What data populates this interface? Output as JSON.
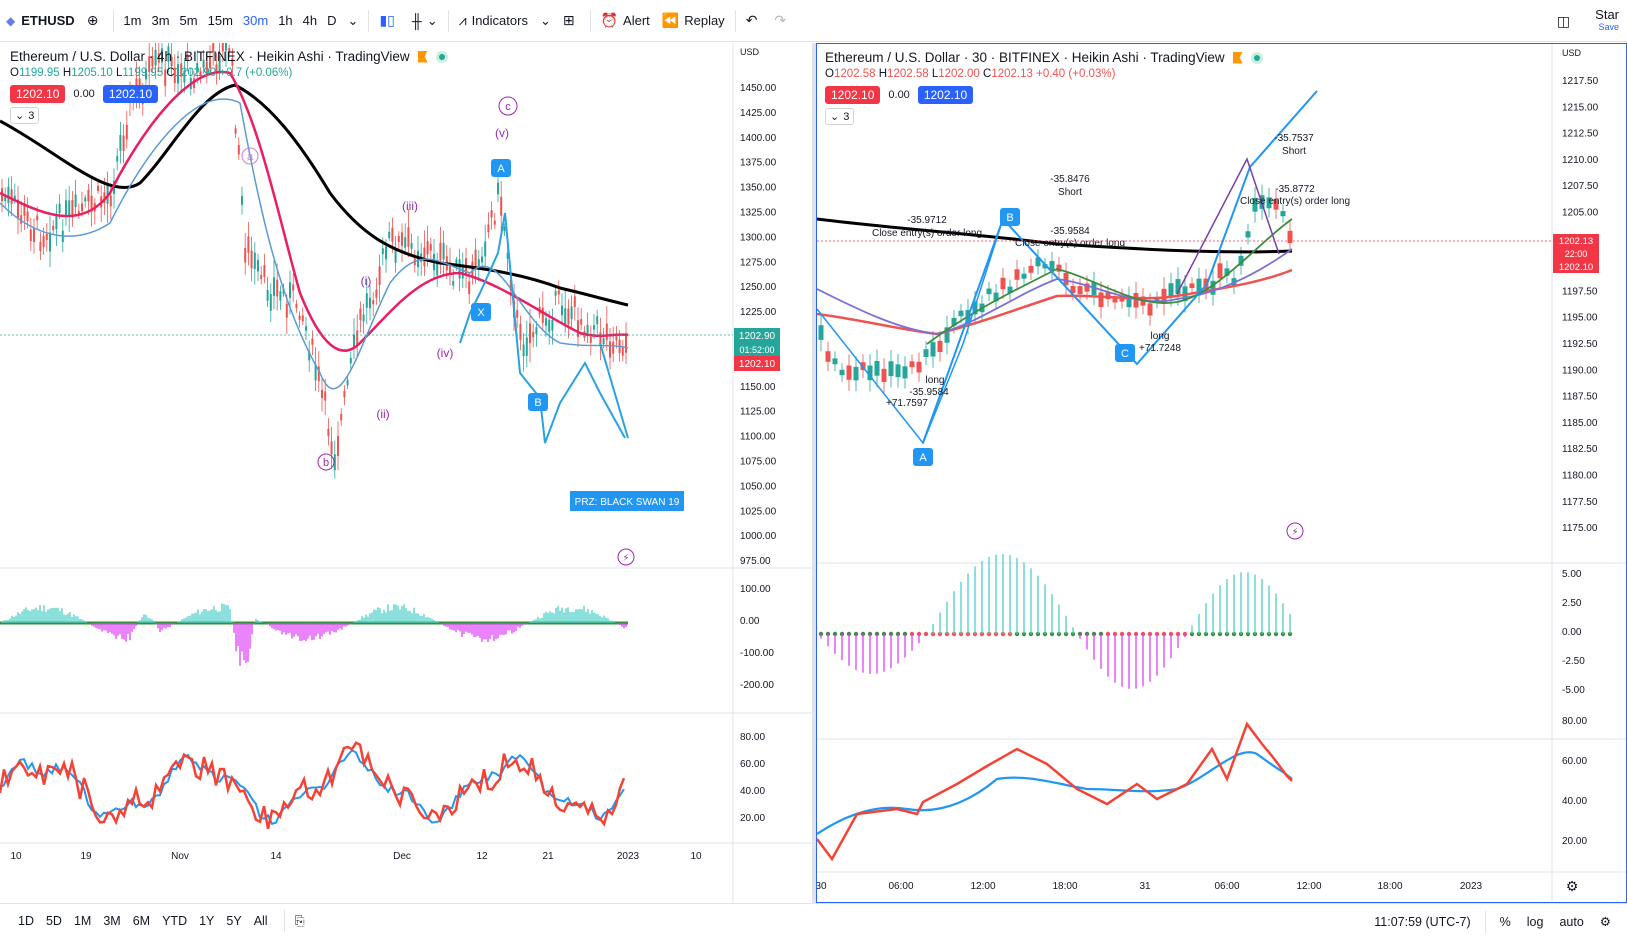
{
  "toolbar": {
    "symbol": "ETHUSD",
    "timeframes": [
      "1m",
      "3m",
      "5m",
      "15m",
      "30m",
      "1h",
      "4h",
      "D"
    ],
    "active_timeframe": "30m",
    "indicators_label": "Indicators",
    "alert_label": "Alert",
    "replay_label": "Replay",
    "star_label": "Star",
    "save_label": "Save"
  },
  "left_chart": {
    "title": "Ethereum / U.S. Dollar · 4h · BITFINEX · Heikin Ashi · TradingView",
    "ohlc": {
      "o": "1199.95",
      "h": "1205.10",
      "l": "1199.95",
      "c": "1202.90",
      "chg": "+0.7",
      "pct": "(+0.06%)"
    },
    "bid": "1202.10",
    "spread": "0.00",
    "ask": "1202.10",
    "collapse_count": "3",
    "currency": "USD",
    "price_axis": [
      "1450.00",
      "1425.00",
      "1400.00",
      "1375.00",
      "1350.00",
      "1325.00",
      "1300.00",
      "1275.00",
      "1250.00",
      "1225.00",
      "1200.00",
      "1175.00",
      "1150.00",
      "1125.00",
      "1100.00",
      "1075.00",
      "1050.00",
      "1025.00",
      "1000.00",
      "975.00"
    ],
    "last_price": "1202.90",
    "countdown": "01:52:00",
    "bid_tag": "1202.10",
    "macd_axis": [
      "100.00",
      "0.00",
      "-100.00",
      "-200.00"
    ],
    "rsi_axis": [
      "80.00",
      "60.00",
      "40.00",
      "20.00"
    ],
    "time_axis": [
      "10",
      "19",
      "Nov",
      "14",
      "Dec",
      "12",
      "21",
      "2023",
      "10"
    ],
    "prz_label": "PRZ: BLACK SWAN 19",
    "wave_labels": [
      "c",
      "(v)",
      "a",
      "(iii)",
      "(i)",
      "(iv)",
      "(ii)",
      "b"
    ],
    "point_labels": [
      "A",
      "B",
      "X"
    ]
  },
  "right_chart": {
    "title": "Ethereum / U.S. Dollar · 30 · BITFINEX · Heikin Ashi · TradingView",
    "ohlc": {
      "o": "1202.58",
      "h": "1202.58",
      "l": "1202.00",
      "c": "1202.13",
      "chg": "+0.40",
      "pct": "(+0.03%)"
    },
    "bid": "1202.10",
    "spread": "0.00",
    "ask": "1202.10",
    "collapse_count": "3",
    "currency": "USD",
    "price_axis": [
      "1217.50",
      "1215.00",
      "1212.50",
      "1210.00",
      "1207.50",
      "1205.00",
      "1202.50",
      "1200.00",
      "1197.50",
      "1195.00",
      "1192.50",
      "1190.00",
      "1187.50",
      "1185.00",
      "1182.50",
      "1180.00",
      "1177.50",
      "1175.00"
    ],
    "last_price": "1202.13",
    "countdown": "22:00",
    "bid_tag": "1202.10",
    "macd_axis": [
      "5.00",
      "2.50",
      "0.00",
      "-2.50",
      "-5.00"
    ],
    "rsi_axis": [
      "80.00",
      "60.00",
      "40.00",
      "20.00"
    ],
    "time_axis": [
      "30",
      "06:00",
      "12:00",
      "18:00",
      "31",
      "06:00",
      "12:00",
      "18:00",
      "2023"
    ],
    "annotations": {
      "a1": "-35.9712",
      "a1_text": "Close entry(s) order long",
      "a2": "-35.8476",
      "a2_text": "Short",
      "a3": "-35.9584",
      "a3_text": "Close entry(s) order long",
      "a4": "-35.7537",
      "a4_text": "Short",
      "a5": "-35.8772",
      "a5_text": "Close entry(s) order long",
      "long1": "long",
      "long1_val": "-35.9584",
      "long1_pl": "+71.7597",
      "long2": "long",
      "long2_val": "+71.7248"
    },
    "point_labels": [
      "A",
      "B",
      "C"
    ]
  },
  "bottom": {
    "ranges": [
      "1D",
      "5D",
      "1M",
      "3M",
      "6M",
      "YTD",
      "1Y",
      "5Y",
      "All"
    ],
    "clock": "11:07:59 (UTC-7)",
    "percent": "%",
    "log": "log",
    "auto": "auto"
  },
  "colors": {
    "accent": "#2962ff",
    "bull": "#26a69a",
    "bear": "#ef5350",
    "ma_black": "#000000",
    "ma_pink": "#e91e63",
    "wave_purple": "#9c27b0"
  }
}
